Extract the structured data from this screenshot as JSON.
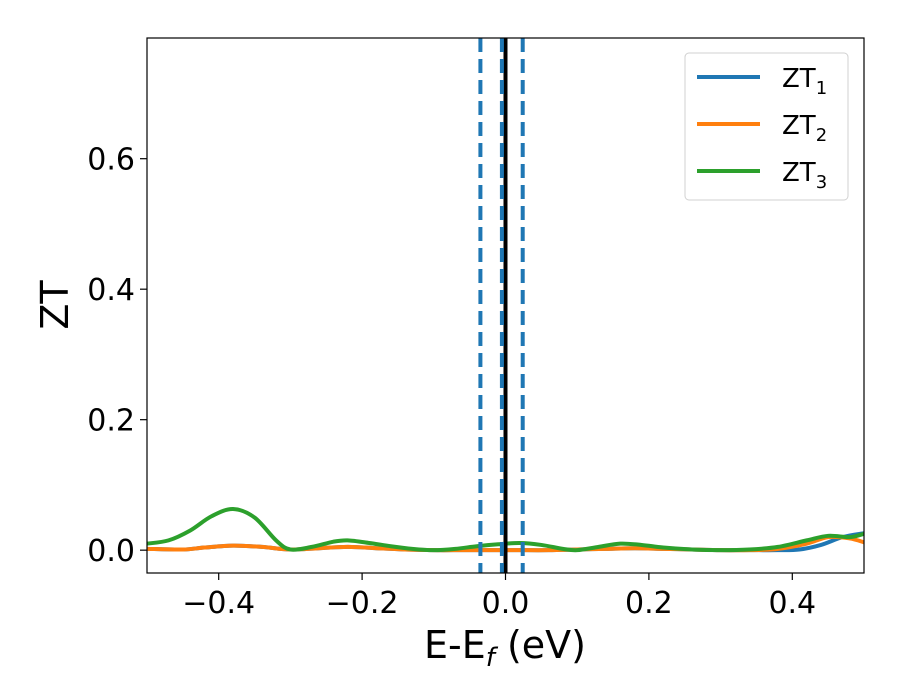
{
  "chart_data": {
    "type": "line",
    "xlabel": "E-E",
    "xlabel_sub": "f",
    "xlabel_unit": " (eV)",
    "ylabel": "ZT",
    "xlim": [
      -0.5,
      0.5
    ],
    "ylim": [
      -0.035,
      0.785
    ],
    "xticks": [
      -0.4,
      -0.2,
      0.0,
      0.2,
      0.4
    ],
    "xtick_labels": [
      "−0.4",
      "−0.2",
      "0.0",
      "0.2",
      "0.4"
    ],
    "yticks": [
      0.0,
      0.2,
      0.4,
      0.6
    ],
    "ytick_labels": [
      "0.0",
      "0.2",
      "0.4",
      "0.6"
    ],
    "grid": false,
    "legend_position": "top-right",
    "series": [
      {
        "name": "ZT",
        "name_sub": "1",
        "color": "#1f77b4",
        "x": [
          -0.5,
          -0.45,
          -0.42,
          -0.38,
          -0.34,
          -0.3,
          -0.26,
          -0.22,
          -0.18,
          -0.14,
          -0.1,
          -0.06,
          -0.02,
          0.0,
          0.02,
          0.06,
          0.1,
          0.14,
          0.18,
          0.22,
          0.26,
          0.3,
          0.34,
          0.38,
          0.41,
          0.44,
          0.47,
          0.5
        ],
        "y": [
          0.002,
          0.001,
          0.004,
          0.007,
          0.005,
          0.001,
          0.003,
          0.005,
          0.003,
          0.001,
          0.0,
          0.0,
          0.0,
          0.0,
          0.0,
          0.0,
          0.001,
          0.002,
          0.003,
          0.002,
          0.001,
          0.0,
          0.0,
          0.0,
          0.001,
          0.008,
          0.02,
          0.026
        ]
      },
      {
        "name": "ZT",
        "name_sub": "2",
        "color": "#ff7f0e",
        "x": [
          -0.5,
          -0.45,
          -0.42,
          -0.38,
          -0.34,
          -0.3,
          -0.26,
          -0.22,
          -0.18,
          -0.14,
          -0.1,
          -0.06,
          -0.02,
          0.0,
          0.02,
          0.06,
          0.1,
          0.14,
          0.18,
          0.22,
          0.26,
          0.3,
          0.34,
          0.38,
          0.42,
          0.45,
          0.48,
          0.5
        ],
        "y": [
          0.002,
          0.001,
          0.004,
          0.007,
          0.005,
          0.001,
          0.003,
          0.005,
          0.003,
          0.001,
          0.0,
          0.0,
          0.0,
          0.0,
          0.0,
          0.0,
          0.001,
          0.002,
          0.003,
          0.002,
          0.001,
          0.0,
          0.0,
          0.002,
          0.01,
          0.02,
          0.018,
          0.012
        ]
      },
      {
        "name": "ZT",
        "name_sub": "3",
        "color": "#2ca02c",
        "x": [
          -0.5,
          -0.47,
          -0.44,
          -0.41,
          -0.38,
          -0.35,
          -0.32,
          -0.3,
          -0.27,
          -0.24,
          -0.22,
          -0.19,
          -0.16,
          -0.13,
          -0.1,
          -0.07,
          -0.04,
          -0.01,
          0.02,
          0.05,
          0.08,
          0.1,
          0.13,
          0.16,
          0.19,
          0.22,
          0.26,
          0.3,
          0.34,
          0.38,
          0.42,
          0.45,
          0.48,
          0.5
        ],
        "y": [
          0.01,
          0.015,
          0.03,
          0.052,
          0.063,
          0.05,
          0.015,
          0.001,
          0.005,
          0.013,
          0.015,
          0.011,
          0.006,
          0.002,
          0.0,
          0.002,
          0.006,
          0.009,
          0.011,
          0.008,
          0.002,
          0.0,
          0.005,
          0.01,
          0.008,
          0.004,
          0.001,
          0.0,
          0.001,
          0.005,
          0.015,
          0.022,
          0.02,
          0.025
        ]
      }
    ],
    "vlines": [
      {
        "x": 0.0,
        "style": "solid",
        "color": "#000000"
      },
      {
        "x": -0.035,
        "style": "dashed",
        "color": "#1f77b4"
      },
      {
        "x": -0.005,
        "style": "dashed",
        "color": "#1f77b4"
      },
      {
        "x": 0.024,
        "style": "dashed",
        "color": "#1f77b4"
      }
    ]
  }
}
